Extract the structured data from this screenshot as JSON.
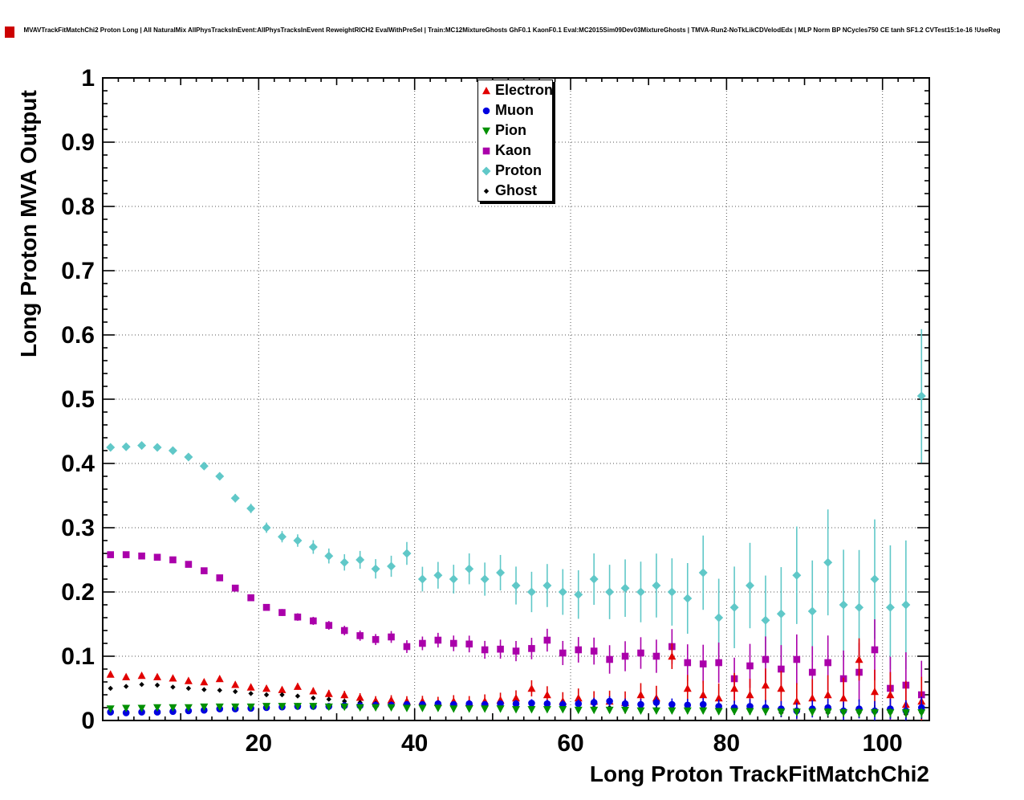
{
  "corner_marker": {
    "color": "#cc0000"
  },
  "chart_data": {
    "type": "scatter",
    "title": "MVAVTrackFitMatchChi2 Proton Long | All NaturalMix AllPhysTracksInEvent:AllPhysTracksInEvent ReweightRICH2 EvalWithPreSel | Train:MC12MixtureGhosts GhF0.1 KaonF0.1 Eval:MC2015Sim09Dev03MixtureGhosts | TMVA-Run2-NoTkLikCDVelodEdx | MLP Norm BP NCycles750 CE tanh SF1.2 CVTest15:1e-16 !UseReg",
    "xlabel": "Long Proton TrackFitMatchChi2",
    "ylabel": "Long Proton MVA Output",
    "xlim": [
      0,
      106
    ],
    "ylim": [
      0,
      1
    ],
    "x_tick_values": [
      20,
      40,
      60,
      80,
      100
    ],
    "x_tick_labels": [
      "20",
      "40",
      "60",
      "80",
      "100"
    ],
    "y_tick_values": [
      0,
      0.1,
      0.2,
      0.3,
      0.4,
      0.5,
      0.6,
      0.7,
      0.8,
      0.9,
      1
    ],
    "y_tick_labels": [
      "0",
      "0.1",
      "0.2",
      "0.3",
      "0.4",
      "0.5",
      "0.6",
      "0.7",
      "0.8",
      "0.9",
      "1"
    ],
    "grid": "dotted",
    "legend_position": "top-center",
    "x": [
      1,
      3,
      5,
      7,
      9,
      11,
      13,
      15,
      17,
      19,
      21,
      23,
      25,
      27,
      29,
      31,
      33,
      35,
      37,
      39,
      41,
      43,
      45,
      47,
      49,
      51,
      53,
      55,
      57,
      59,
      61,
      63,
      65,
      67,
      69,
      71,
      73,
      75,
      77,
      79,
      81,
      83,
      85,
      87,
      89,
      91,
      93,
      95,
      97,
      99,
      101,
      103,
      105
    ],
    "series": [
      {
        "name": "Electron",
        "marker": "triangle-up",
        "color": "#e10000",
        "error_base": 0.003,
        "error_growth": 0.035,
        "values": [
          0.072,
          0.068,
          0.07,
          0.068,
          0.066,
          0.062,
          0.06,
          0.065,
          0.056,
          0.052,
          0.05,
          0.048,
          0.053,
          0.046,
          0.042,
          0.04,
          0.036,
          0.031,
          0.032,
          0.03,
          0.03,
          0.028,
          0.03,
          0.028,
          0.03,
          0.032,
          0.035,
          0.05,
          0.04,
          0.03,
          0.035,
          0.03,
          0.03,
          0.028,
          0.04,
          0.035,
          0.1,
          0.05,
          0.04,
          0.035,
          0.05,
          0.04,
          0.055,
          0.05,
          0.03,
          0.035,
          0.04,
          0.035,
          0.095,
          0.045,
          0.04,
          0.025,
          0.03
        ]
      },
      {
        "name": "Muon",
        "marker": "circle",
        "color": "#0000e0",
        "error_base": 0.002,
        "error_growth": 0.015,
        "values": [
          0.013,
          0.012,
          0.013,
          0.013,
          0.014,
          0.015,
          0.016,
          0.018,
          0.018,
          0.019,
          0.02,
          0.021,
          0.022,
          0.022,
          0.022,
          0.023,
          0.023,
          0.024,
          0.024,
          0.025,
          0.025,
          0.026,
          0.025,
          0.026,
          0.025,
          0.026,
          0.026,
          0.027,
          0.026,
          0.025,
          0.026,
          0.028,
          0.03,
          0.026,
          0.025,
          0.028,
          0.025,
          0.024,
          0.025,
          0.022,
          0.02,
          0.022,
          0.02,
          0.018,
          0.015,
          0.018,
          0.02,
          0.015,
          0.018,
          0.015,
          0.018,
          0.015,
          0.02
        ]
      },
      {
        "name": "Pion",
        "marker": "triangle-down",
        "color": "#009000",
        "error_base": 0.0015,
        "error_growth": 0.006,
        "values": [
          0.018,
          0.019,
          0.019,
          0.02,
          0.02,
          0.02,
          0.021,
          0.021,
          0.021,
          0.021,
          0.022,
          0.022,
          0.022,
          0.022,
          0.021,
          0.021,
          0.02,
          0.02,
          0.02,
          0.019,
          0.019,
          0.019,
          0.018,
          0.018,
          0.018,
          0.018,
          0.017,
          0.017,
          0.017,
          0.017,
          0.016,
          0.016,
          0.016,
          0.016,
          0.015,
          0.015,
          0.015,
          0.015,
          0.015,
          0.014,
          0.014,
          0.014,
          0.014,
          0.013,
          0.013,
          0.013,
          0.013,
          0.012,
          0.012,
          0.012,
          0.012,
          0.012,
          0.012
        ]
      },
      {
        "name": "Kaon",
        "marker": "square",
        "color": "#aa00aa",
        "error_base": 0.003,
        "error_growth": 0.05,
        "values": [
          0.258,
          0.258,
          0.256,
          0.254,
          0.25,
          0.243,
          0.233,
          0.222,
          0.206,
          0.191,
          0.176,
          0.168,
          0.161,
          0.155,
          0.148,
          0.14,
          0.132,
          0.126,
          0.13,
          0.115,
          0.12,
          0.125,
          0.12,
          0.119,
          0.11,
          0.111,
          0.108,
          0.112,
          0.125,
          0.105,
          0.11,
          0.108,
          0.095,
          0.1,
          0.105,
          0.1,
          0.115,
          0.09,
          0.088,
          0.09,
          0.065,
          0.085,
          0.095,
          0.08,
          0.095,
          0.075,
          0.09,
          0.065,
          0.075,
          0.11,
          0.05,
          0.055,
          0.04
        ]
      },
      {
        "name": "Proton",
        "marker": "diamond",
        "color": "#60c8c8",
        "error_base": 0.004,
        "error_growth": 0.1,
        "values": [
          0.425,
          0.426,
          0.428,
          0.425,
          0.42,
          0.41,
          0.396,
          0.38,
          0.346,
          0.33,
          0.3,
          0.286,
          0.28,
          0.27,
          0.256,
          0.246,
          0.25,
          0.236,
          0.24,
          0.26,
          0.22,
          0.226,
          0.22,
          0.236,
          0.22,
          0.23,
          0.21,
          0.2,
          0.21,
          0.2,
          0.196,
          0.22,
          0.2,
          0.206,
          0.2,
          0.21,
          0.2,
          0.19,
          0.23,
          0.16,
          0.176,
          0.21,
          0.156,
          0.166,
          0.226,
          0.17,
          0.246,
          0.18,
          0.176,
          0.22,
          0.176,
          0.18,
          0.505
        ]
      },
      {
        "name": "Ghost",
        "marker": "diamond-small",
        "color": "#000000",
        "error_base": 0.0015,
        "error_growth": 0.008,
        "values": [
          0.05,
          0.053,
          0.056,
          0.055,
          0.052,
          0.05,
          0.048,
          0.047,
          0.045,
          0.042,
          0.04,
          0.04,
          0.038,
          0.035,
          0.033,
          0.03,
          0.028,
          0.027,
          0.026,
          0.025,
          0.026,
          0.025,
          0.024,
          0.024,
          0.023,
          0.022,
          0.022,
          0.022,
          0.021,
          0.02,
          0.02,
          0.02,
          0.02,
          0.019,
          0.02,
          0.018,
          0.02,
          0.018,
          0.02,
          0.018,
          0.015,
          0.018,
          0.015,
          0.012,
          0.012,
          0.015,
          0.012,
          0.014,
          0.012,
          0.015,
          0.012,
          0.01,
          0.012
        ]
      }
    ]
  }
}
